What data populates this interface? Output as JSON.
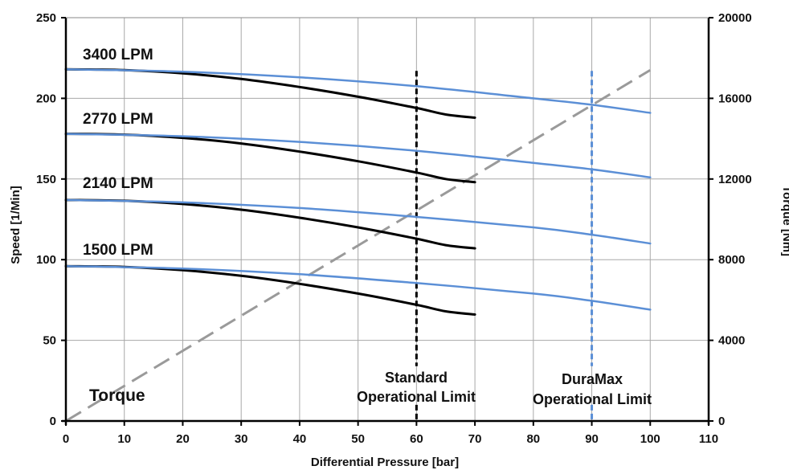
{
  "chart_data": {
    "type": "line",
    "xlabel": "Differential Pressure [bar]",
    "ylabel": "Speed [1/Min]",
    "y2label": "Torque [Nm]",
    "xlim": [
      0,
      110
    ],
    "ylim": [
      0,
      250
    ],
    "y2lim": [
      0,
      20000
    ],
    "x_ticks": [
      "0",
      "10",
      "20",
      "30",
      "40",
      "50",
      "60",
      "70",
      "80",
      "90",
      "100",
      "110"
    ],
    "y_ticks": [
      "0",
      "50",
      "100",
      "150",
      "200",
      "250"
    ],
    "y2_ticks": [
      "0",
      "4000",
      "8000",
      "12000",
      "16000",
      "20000"
    ],
    "grid": true,
    "colors": {
      "standard": "#000000",
      "duramax": "#5B8FD6",
      "torque": "#9A9A9A"
    },
    "flow_labels": [
      "3400 LPM",
      "2770 LPM",
      "2140 LPM",
      "1500 LPM"
    ],
    "series": [
      {
        "group": "3400 LPM",
        "style": "standard",
        "x": [
          0,
          10,
          20,
          30,
          40,
          50,
          60,
          65,
          70
        ],
        "y": [
          218,
          217.5,
          215.5,
          212,
          207,
          201,
          194,
          190,
          188
        ]
      },
      {
        "group": "3400 LPM",
        "style": "duramax",
        "x": [
          0,
          20,
          40,
          60,
          80,
          90,
          100
        ],
        "y": [
          218,
          216.5,
          213,
          207.5,
          200,
          196,
          191
        ]
      },
      {
        "group": "2770 LPM",
        "style": "standard",
        "x": [
          0,
          10,
          20,
          30,
          40,
          50,
          60,
          65,
          70
        ],
        "y": [
          178,
          177.5,
          175.5,
          172,
          167,
          161,
          154,
          150,
          148
        ]
      },
      {
        "group": "2770 LPM",
        "style": "duramax",
        "x": [
          0,
          20,
          40,
          60,
          80,
          90,
          100
        ],
        "y": [
          178,
          176.5,
          173,
          167.5,
          160,
          156,
          151
        ]
      },
      {
        "group": "2140 LPM",
        "style": "standard",
        "x": [
          0,
          10,
          20,
          30,
          40,
          50,
          60,
          65,
          70
        ],
        "y": [
          137,
          136.5,
          134.5,
          131,
          126,
          120,
          113,
          109,
          107
        ]
      },
      {
        "group": "2140 LPM",
        "style": "duramax",
        "x": [
          0,
          20,
          40,
          60,
          80,
          90,
          100
        ],
        "y": [
          137,
          135.5,
          132,
          126.5,
          120,
          115.5,
          110
        ]
      },
      {
        "group": "1500 LPM",
        "style": "standard",
        "x": [
          0,
          10,
          20,
          30,
          40,
          50,
          60,
          65,
          70
        ],
        "y": [
          96,
          95.5,
          93.5,
          90,
          85,
          79,
          72,
          68,
          66
        ]
      },
      {
        "group": "1500 LPM",
        "style": "duramax",
        "x": [
          0,
          20,
          40,
          60,
          80,
          90,
          100
        ],
        "y": [
          96,
          94.5,
          91,
          85.5,
          79,
          74.5,
          69
        ]
      }
    ],
    "torque": {
      "label": "Torque",
      "x": [
        0,
        100
      ],
      "y2": [
        0,
        17400
      ]
    },
    "limits": [
      {
        "label_line1": "Standard",
        "label_line2": "Operational Limit",
        "x": 60,
        "style": "standard"
      },
      {
        "label_line1": "DuraMax",
        "label_line2": "Operational Limit",
        "x": 90,
        "style": "duramax"
      }
    ]
  }
}
